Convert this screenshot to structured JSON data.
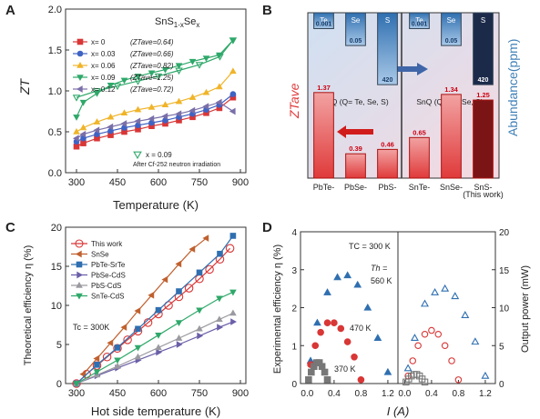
{
  "panel_labels": [
    "A",
    "B",
    "C",
    "D"
  ],
  "chart_data": [
    {
      "panel": "A",
      "type": "line",
      "title": "SnS1-xSex",
      "title_main": "SnS",
      "title_sub": "1-x",
      "title_tail": "Se",
      "title_tailsub": "x",
      "xlabel": "Temperature (K)",
      "ylabel": "ZT",
      "xlim": [
        260,
        920
      ],
      "ylim": [
        0.0,
        2.0
      ],
      "xticks": [
        300,
        450,
        600,
        750,
        900
      ],
      "yticks": [
        0.0,
        0.5,
        1.0,
        1.5,
        2.0
      ],
      "grid": false,
      "legend_placement": "top-left",
      "series": [
        {
          "name": "x= 0",
          "zt_ave": "(ZTave=0.64)",
          "color": "#d93636",
          "marker": "square",
          "x": [
            300,
            325,
            375,
            425,
            475,
            525,
            575,
            625,
            675,
            725,
            775,
            823,
            873
          ],
          "y": [
            0.32,
            0.36,
            0.42,
            0.46,
            0.5,
            0.53,
            0.57,
            0.6,
            0.64,
            0.68,
            0.73,
            0.79,
            0.92
          ]
        },
        {
          "name": "x= 0.03",
          "zt_ave": "(ZTave=0.66)",
          "color": "#3f63c4",
          "marker": "circle",
          "x": [
            300,
            325,
            375,
            425,
            475,
            525,
            575,
            625,
            675,
            725,
            775,
            823,
            873
          ],
          "y": [
            0.38,
            0.42,
            0.47,
            0.51,
            0.55,
            0.58,
            0.61,
            0.64,
            0.68,
            0.72,
            0.77,
            0.83,
            0.96
          ]
        },
        {
          "name": "x= 0.06",
          "zt_ave": "(ZTave=0.82)",
          "color": "#f0b429",
          "marker": "triangle-up",
          "x": [
            300,
            325,
            375,
            425,
            475,
            525,
            575,
            625,
            675,
            725,
            775,
            823,
            873
          ],
          "y": [
            0.5,
            0.55,
            0.62,
            0.68,
            0.73,
            0.77,
            0.8,
            0.83,
            0.87,
            0.92,
            0.98,
            1.05,
            1.24
          ]
        },
        {
          "name": "x= 0.09",
          "zt_ave": "(ZTave=1.25)",
          "color": "#2fa86a",
          "marker": "triangle-down",
          "x": [
            300,
            325,
            375,
            425,
            475,
            525,
            575,
            625,
            675,
            725,
            775,
            823,
            873
          ],
          "y": [
            0.68,
            0.86,
            0.97,
            1.07,
            1.13,
            1.18,
            1.22,
            1.26,
            1.31,
            1.36,
            1.4,
            1.44,
            1.62
          ]
        },
        {
          "name": "x= 0.12",
          "zt_ave": "(ZTave=0.72)",
          "color": "#7a6fa8",
          "marker": "triangle-left",
          "x": [
            300,
            325,
            375,
            425,
            475,
            525,
            575,
            625,
            675,
            725,
            775,
            823,
            873
          ],
          "y": [
            0.42,
            0.47,
            0.52,
            0.56,
            0.6,
            0.63,
            0.66,
            0.69,
            0.72,
            0.76,
            0.81,
            0.86,
            0.75
          ]
        },
        {
          "name": "x = 0.09",
          "note": "After Cf-252 neutron irradiation",
          "color": "#2fa86a",
          "marker": "triangle-down-open",
          "x": [
            300,
            375,
            450,
            525,
            600,
            675,
            750,
            825,
            873
          ],
          "y": [
            0.92,
            1.0,
            1.06,
            1.12,
            1.18,
            1.25,
            1.32,
            1.42,
            1.62
          ]
        }
      ]
    },
    {
      "panel": "B",
      "type": "bar",
      "ylabel_left": "ZTave",
      "ylabel_right": "Abundance(ppm)",
      "group_labels": [
        "PbQ (Q= Te, Se, S)",
        "SnQ (Q= Te, Se, S)"
      ],
      "categories": [
        "PbTe-",
        "PbSe-",
        "PbS-",
        "SnTe-",
        "SnSe-",
        "SnS-"
      ],
      "category_note": "(This work)",
      "zt_values": [
        1.37,
        0.39,
        0.46,
        0.65,
        1.34,
        1.25
      ],
      "zt_labels": [
        "1.37",
        "0.39",
        "0.46",
        "0.65",
        "1.34",
        "1.25"
      ],
      "abundance_elements": [
        "Te",
        "Se",
        "S",
        "Te",
        "Se",
        "S"
      ],
      "abundance_values": [
        0.001,
        0.05,
        420,
        0.001,
        0.05,
        420
      ],
      "abundance_labels": [
        "0.001",
        "0.05",
        "420",
        "0.001",
        "0.05",
        "420"
      ]
    },
    {
      "panel": "C",
      "type": "line",
      "xlabel": "Hot side temperature (K)",
      "ylabel": "Theoretical efficiency η (%)",
      "annotation": "Tc = 300K",
      "xlim": [
        260,
        920
      ],
      "ylim": [
        0,
        20
      ],
      "xticks": [
        300,
        450,
        600,
        750,
        900
      ],
      "yticks": [
        0,
        5,
        10,
        15,
        20
      ],
      "legend_placement": "top-left",
      "series": [
        {
          "name": "This work",
          "color": "#d93636",
          "marker": "circle-open",
          "x": [
            300,
            337,
            375,
            412,
            450,
            487,
            525,
            562,
            600,
            637,
            675,
            712,
            750,
            787,
            825,
            862
          ],
          "y": [
            0,
            1.2,
            2.3,
            3.4,
            4.5,
            5.6,
            6.7,
            7.8,
            8.9,
            10.0,
            11.1,
            12.2,
            13.4,
            14.6,
            15.9,
            17.3
          ]
        },
        {
          "name": "SnSe",
          "color": "#c0602e",
          "marker": "triangle-left",
          "x": [
            325,
            375,
            425,
            475,
            525,
            575,
            625,
            675,
            725,
            775
          ],
          "y": [
            1.2,
            3.2,
            5.2,
            7.2,
            9.3,
            11.3,
            13.3,
            15.3,
            17.2,
            18.6
          ]
        },
        {
          "name": "PbTe-SrTe",
          "color": "#2f6fb0",
          "marker": "square",
          "x": [
            300,
            375,
            450,
            525,
            600,
            675,
            750,
            825,
            873
          ],
          "y": [
            0,
            2.4,
            4.6,
            7.0,
            9.4,
            11.8,
            14.2,
            16.6,
            18.9
          ]
        },
        {
          "name": "PbSe-CdS",
          "color": "#6a5fa8",
          "marker": "triangle-right",
          "x": [
            300,
            375,
            450,
            525,
            600,
            675,
            750,
            823,
            873
          ],
          "y": [
            0,
            1.0,
            2.0,
            3.0,
            4.0,
            5.0,
            6.1,
            7.2,
            7.9
          ]
        },
        {
          "name": "PbS-CdS",
          "color": "#9a9aa0",
          "marker": "triangle-up",
          "x": [
            300,
            375,
            450,
            525,
            600,
            675,
            750,
            823,
            873
          ],
          "y": [
            0,
            1.1,
            2.2,
            3.4,
            4.6,
            5.8,
            7.0,
            8.2,
            9.0
          ]
        },
        {
          "name": "SnTe-CdS",
          "color": "#2fa86a",
          "marker": "triangle-down",
          "x": [
            300,
            375,
            450,
            525,
            600,
            675,
            750,
            823,
            873
          ],
          "y": [
            0,
            1.5,
            3.0,
            4.6,
            6.2,
            7.8,
            9.4,
            10.9,
            11.7
          ]
        }
      ]
    },
    {
      "panel": "D",
      "type": "scatter",
      "xlabel": "I (A)",
      "ylabel_left": "Experimental efficiency η (%)",
      "ylabel_right": "Output power (mW)",
      "annotation_tc": "TC = 300 K",
      "annotation_th": "Th =",
      "labels_temp": [
        "560 K",
        "470 K",
        "370 K"
      ],
      "xticks": [
        "0.0",
        "0.4",
        "0.8",
        "1.2"
      ],
      "xtick_values": [
        0.0,
        0.4,
        0.8,
        1.2
      ],
      "xlim": [
        -0.1,
        1.35
      ],
      "ylim_left": [
        0,
        4
      ],
      "yticks_left": [
        0,
        1,
        2,
        3,
        4
      ],
      "ylim_right": [
        0,
        20
      ],
      "yticks_right": [
        0,
        5,
        10,
        15,
        20
      ],
      "efficiency_series": [
        {
          "name": "560 K",
          "color": "#2f6fb0",
          "marker": "triangle-up",
          "x": [
            0.05,
            0.15,
            0.3,
            0.45,
            0.6,
            0.75,
            0.9,
            1.05,
            1.2
          ],
          "y": [
            0.6,
            1.6,
            2.4,
            2.8,
            2.85,
            2.6,
            2.0,
            1.2,
            0.3
          ]
        },
        {
          "name": "470 K",
          "color": "#d93636",
          "marker": "circle",
          "x": [
            0.05,
            0.12,
            0.2,
            0.3,
            0.4,
            0.5,
            0.6,
            0.7,
            0.8
          ],
          "y": [
            0.5,
            1.0,
            1.35,
            1.6,
            1.6,
            1.45,
            1.1,
            0.7,
            0.1
          ]
        },
        {
          "name": "370 K",
          "color": "#777777",
          "marker": "square",
          "x": [
            0.02,
            0.06,
            0.1,
            0.14,
            0.18,
            0.22,
            0.26,
            0.3
          ],
          "y": [
            0.1,
            0.3,
            0.45,
            0.55,
            0.55,
            0.45,
            0.3,
            0.1
          ]
        }
      ],
      "power_series": [
        {
          "name": "560 K",
          "color": "#2f6fb0",
          "marker": "triangle-up-open",
          "x": [
            0.05,
            0.15,
            0.3,
            0.45,
            0.6,
            0.75,
            0.9,
            1.05,
            1.2
          ],
          "y": [
            2.0,
            6.0,
            10.5,
            12.0,
            12.5,
            11.5,
            9.0,
            5.5,
            1.0
          ]
        },
        {
          "name": "470 K",
          "color": "#d93636",
          "marker": "circle-open",
          "x": [
            0.05,
            0.12,
            0.2,
            0.3,
            0.4,
            0.5,
            0.6,
            0.7,
            0.8
          ],
          "y": [
            1.0,
            3.0,
            5.0,
            6.5,
            7.0,
            6.5,
            5.0,
            3.0,
            0.5
          ]
        },
        {
          "name": "370 K",
          "color": "#777777",
          "marker": "square-open",
          "x": [
            0.02,
            0.06,
            0.1,
            0.14,
            0.18,
            0.22,
            0.26,
            0.3
          ],
          "y": [
            0.2,
            0.6,
            1.0,
            1.2,
            1.2,
            1.0,
            0.6,
            0.2
          ]
        }
      ]
    }
  ]
}
